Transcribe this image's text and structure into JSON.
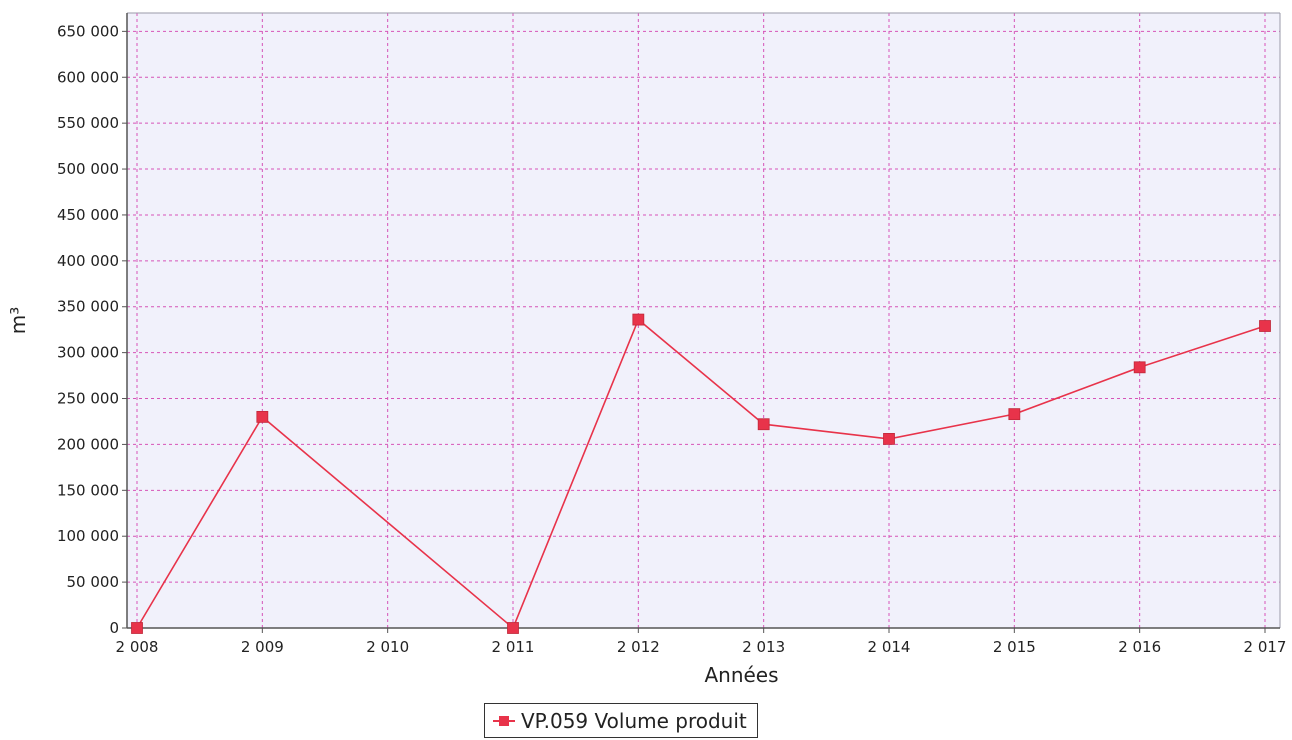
{
  "chart_data": {
    "type": "line",
    "title": "",
    "xlabel": "Années",
    "ylabel": "m³",
    "x": [
      "2 008",
      "2 009",
      "2 010",
      "2 011",
      "2 012",
      "2 013",
      "2 014",
      "2 015",
      "2 016",
      "2 017"
    ],
    "series": [
      {
        "name": "VP.059 Volume produit",
        "x": [
          "2 008",
          "2 009",
          "2 011",
          "2 012",
          "2 013",
          "2 014",
          "2 015",
          "2 016",
          "2 017"
        ],
        "values": [
          0,
          230000,
          0,
          336000,
          222000,
          206000,
          233000,
          284000,
          329000
        ]
      }
    ],
    "ylim": [
      0,
      670000
    ],
    "yticks": [
      0,
      50000,
      100000,
      150000,
      200000,
      250000,
      300000,
      350000,
      400000,
      450000,
      500000,
      550000,
      600000,
      650000
    ],
    "ytick_labels": [
      "0",
      "50 000",
      "100 000",
      "150 000",
      "200 000",
      "250 000",
      "300 000",
      "350 000",
      "400 000",
      "450 000",
      "500 000",
      "550 000",
      "600 000",
      "650 000"
    ],
    "grid": true,
    "legend_position": "bottom-center",
    "colors": {
      "series": "#e8334a",
      "grid": "#d654b8",
      "plot_background": "#f1f1fb",
      "axis": "#555555"
    }
  }
}
